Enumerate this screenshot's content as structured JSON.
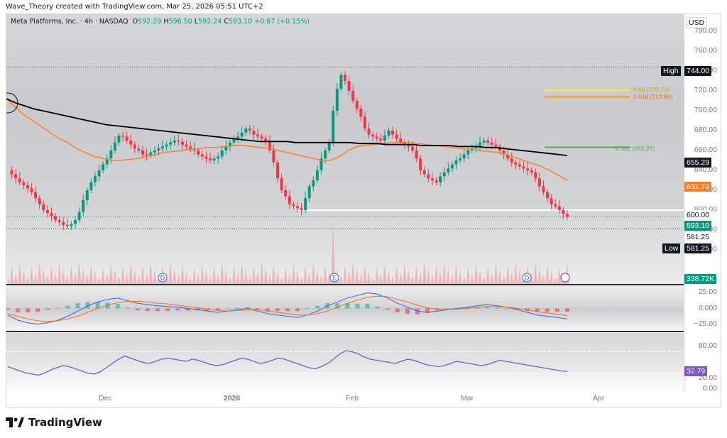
{
  "credit": "Wave_Theory created with TradingView.com, Mar 25, 2026 05:51 UTC+2",
  "legend": {
    "symbol": "Meta Platforms, Inc. · 4h · NASDAQ",
    "o_label": "O",
    "o": "592.29",
    "h_label": "H",
    "h": "596.50",
    "l_label": "L",
    "l": "592.24",
    "c_label": "C",
    "c": "593.10",
    "change": "+0.87 (+0.15%)"
  },
  "currency": "USD",
  "price_ticks": [
    "780.00",
    "760.00",
    "740.00",
    "720.00",
    "700.00",
    "680.00",
    "660.00",
    "640.00",
    "620.00",
    "600.00",
    "580.00",
    "560.00"
  ],
  "tags": {
    "high_label": "High",
    "high": "744.00",
    "ema200": "655.29",
    "ema50": "631.73",
    "support": "600.00",
    "last": "593.10",
    "low_tag": "581.25",
    "low_label": "Low",
    "low": "581.25",
    "volume": "338.72K"
  },
  "fib": {
    "f65": "0.65 (720.75)",
    "f618": "0.618 (713.86)",
    "f382": "0.382 (663.29)"
  },
  "macd_ticks": [
    "25.00",
    "0.000",
    "−25.00"
  ],
  "rsi_ticks": [
    "80.00",
    "20.00",
    "0.00"
  ],
  "rsi_value": "32.79",
  "time_labels": [
    "Dec",
    "2026",
    "Feb",
    "Mar",
    "Apr"
  ],
  "events": [
    "D",
    "E",
    "D"
  ],
  "brand": "TradingView",
  "colors": {
    "up": "#089981",
    "down": "#f23645",
    "ema50": "#ff7f27",
    "ema200": "#000000",
    "macd": "#2962ff",
    "signal": "#ff6d00",
    "rsi": "#7e57c2"
  },
  "chart_data": {
    "type": "candlestick",
    "title": "Meta Platforms, Inc. · 4h · NASDAQ",
    "x_range": [
      "Nov",
      "Apr"
    ],
    "ylim": [
      550,
      790
    ],
    "ohlc_summary": {
      "open": 592.29,
      "high": 596.5,
      "low": 592.24,
      "close": 593.1
    },
    "close_series": [
      640,
      636,
      632,
      628,
      625,
      622,
      618,
      612,
      606,
      600,
      597,
      594,
      590,
      588,
      585,
      584,
      586,
      590,
      598,
      610,
      620,
      628,
      634,
      640,
      646,
      652,
      660,
      668,
      675,
      674,
      670,
      666,
      662,
      660,
      656,
      655,
      658,
      660,
      662,
      664,
      666,
      668,
      670,
      669,
      666,
      664,
      662,
      660,
      656,
      654,
      652,
      650,
      652,
      654,
      660,
      664,
      668,
      672,
      674,
      678,
      682,
      680,
      676,
      674,
      672,
      670,
      660,
      648,
      632,
      620,
      614,
      606,
      604,
      602,
      600,
      612,
      624,
      630,
      640,
      652,
      660,
      668,
      700,
      722,
      736,
      730,
      720,
      710,
      702,
      694,
      682,
      676,
      674,
      672,
      670,
      675,
      680,
      676,
      672,
      668,
      666,
      664,
      660,
      652,
      640,
      636,
      632,
      630,
      628,
      634,
      638,
      642,
      646,
      650,
      652,
      656,
      660,
      662,
      664,
      668,
      670,
      668,
      666,
      664,
      660,
      656,
      652,
      648,
      646,
      644,
      642,
      640,
      638,
      632,
      624,
      618,
      612,
      606,
      604,
      600,
      596,
      593.1
    ],
    "ema50": [
      712,
      704,
      696,
      690,
      684,
      678,
      672,
      668,
      662,
      658,
      654,
      652,
      650,
      650,
      651,
      652,
      654,
      656,
      658,
      659,
      660,
      661,
      662,
      663,
      663,
      664,
      665,
      665,
      664,
      663,
      662,
      660,
      658,
      656,
      654,
      652,
      650,
      650,
      654,
      660,
      664,
      665,
      666,
      667,
      668,
      668,
      668,
      667,
      666,
      665,
      664,
      663,
      662,
      661,
      660,
      659,
      658,
      656,
      653,
      650,
      647,
      644,
      640,
      635,
      630
    ],
    "ema200": [
      712,
      708,
      705,
      702,
      700,
      698,
      696,
      694,
      692,
      690,
      688,
      686,
      685,
      684,
      683,
      682,
      681,
      680,
      679,
      678,
      677,
      676,
      675,
      674,
      673,
      672,
      671,
      670,
      669,
      669,
      669,
      669,
      668,
      668,
      668,
      668,
      668,
      668,
      668,
      667,
      667,
      667,
      666,
      666,
      666,
      666,
      665,
      665,
      665,
      665,
      664,
      664,
      664,
      663,
      663,
      662,
      661,
      660,
      659,
      658,
      657,
      656,
      655
    ],
    "levels": {
      "high": 744.0,
      "fib_0_65": 720.75,
      "fib_0_618": 713.86,
      "fib_0_382": 663.29,
      "support": 600.0,
      "last": 593.1,
      "low": 581.25
    },
    "volume_last": "338.72K",
    "macd": {
      "ylim": [
        -30,
        30
      ],
      "ticks": [
        25,
        0,
        -25
      ],
      "macd": [
        -10,
        -18,
        -22,
        -24,
        -22,
        -18,
        -12,
        -4,
        4,
        10,
        14,
        16,
        12,
        8,
        6,
        4,
        3,
        2,
        0,
        -2,
        -4,
        -6,
        -4,
        -2,
        0,
        -4,
        -8,
        -10,
        -12,
        -14,
        -10,
        -4,
        4,
        10,
        16,
        20,
        24,
        22,
        16,
        8,
        2,
        -4,
        -6,
        -4,
        -2,
        0,
        2,
        4,
        6,
        4,
        2,
        -2,
        -6,
        -10,
        -12,
        -14,
        -16
      ],
      "signal": [
        -8,
        -12,
        -16,
        -19,
        -20,
        -19,
        -16,
        -12,
        -6,
        0,
        5,
        9,
        11,
        11,
        10,
        8,
        7,
        5,
        3,
        1,
        -1,
        -3,
        -4,
        -3,
        -2,
        -2,
        -4,
        -6,
        -8,
        -10,
        -10,
        -8,
        -4,
        2,
        8,
        13,
        17,
        19,
        18,
        14,
        10,
        5,
        1,
        -1,
        -2,
        -1,
        0,
        2,
        3,
        3,
        2,
        0,
        -2,
        -5,
        -7,
        -9,
        -11
      ]
    },
    "rsi": {
      "ylim": [
        0,
        100
      ],
      "ticks": [
        80,
        20,
        0
      ],
      "bands": [
        70,
        30
      ],
      "values": [
        42,
        38,
        34,
        30,
        28,
        26,
        30,
        36,
        40,
        44,
        42,
        38,
        34,
        30,
        28,
        32,
        40,
        48,
        56,
        62,
        58,
        54,
        50,
        48,
        52,
        56,
        58,
        56,
        54,
        52,
        56,
        54,
        50,
        46,
        44,
        46,
        50,
        54,
        58,
        56,
        52,
        48,
        50,
        54,
        58,
        56,
        52,
        48,
        44,
        40,
        38,
        42,
        48,
        56,
        66,
        72,
        70,
        66,
        60,
        56,
        54,
        52,
        50,
        48,
        52,
        56,
        54,
        50,
        46,
        44,
        42,
        44,
        48,
        52,
        50,
        48,
        46,
        44,
        46,
        50,
        54,
        52,
        50,
        48,
        46,
        44,
        42,
        40,
        38,
        36,
        34,
        32.79
      ]
    }
  }
}
